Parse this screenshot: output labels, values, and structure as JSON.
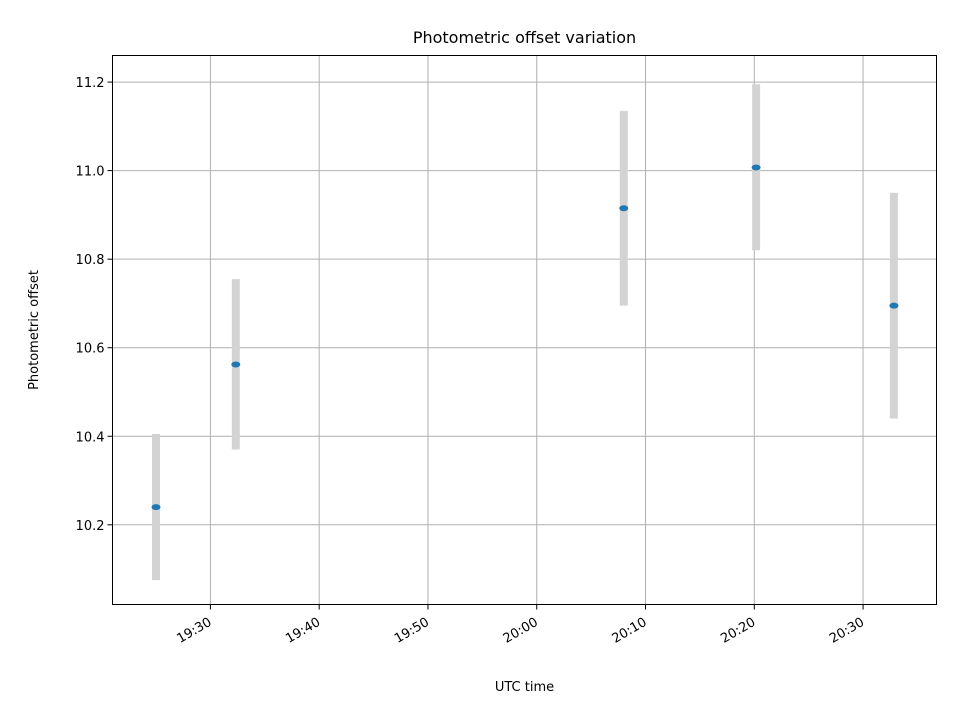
{
  "chart_data": {
    "type": "scatter",
    "title": "Photometric offset variation",
    "xlabel": "UTC time",
    "ylabel": "Photometric offset",
    "x_ticks": [
      "19:30",
      "19:40",
      "19:50",
      "20:00",
      "20:10",
      "20:20",
      "20:30"
    ],
    "y_ticks": [
      "10.2",
      "10.4",
      "10.6",
      "10.8",
      "11.0",
      "11.2"
    ],
    "xlim": [
      "19:21:00",
      "20:36:45"
    ],
    "ylim": [
      10.02,
      11.26
    ],
    "grid": true,
    "series": [
      {
        "x": [
          "19:25:00",
          "19:32:20",
          "20:08:00",
          "20:20:10",
          "20:32:50"
        ],
        "y": [
          10.24,
          10.562,
          10.915,
          11.007,
          10.695
        ],
        "y_lower": [
          10.075,
          10.37,
          10.695,
          10.82,
          10.44
        ],
        "y_upper": [
          10.405,
          10.755,
          11.135,
          11.195,
          10.95
        ]
      }
    ],
    "colors": {
      "points": "#1f77b4",
      "errorbars": "#d3d3d3",
      "grid": "#b0b0b0"
    }
  }
}
